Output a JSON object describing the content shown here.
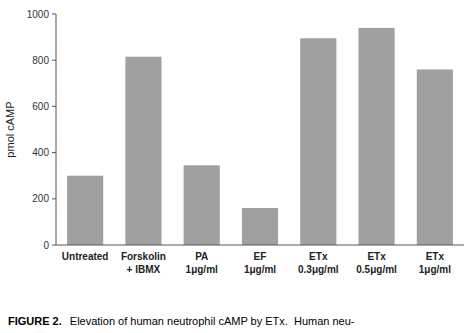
{
  "chart_data": {
    "type": "bar",
    "categories": [
      "Untreated",
      "Forskolin\n+ IBMX",
      "PA\n1μg/ml",
      "EF\n1μg/ml",
      "ETx\n0.3μg/ml",
      "ETx\n0.5μg/ml",
      "ETx\n1μg/ml"
    ],
    "values": [
      300,
      815,
      345,
      160,
      895,
      940,
      760
    ],
    "color": "#a0a0a0",
    "y_label": "pmol cAMP",
    "ylim": [
      0,
      1000
    ],
    "yticks": [
      0,
      200,
      400,
      600,
      800,
      1000
    ],
    "annotations": [
      "FIGURE 2.",
      "Elevation of human neutrophil cAMP by ETx.  Human neu-"
    ]
  }
}
